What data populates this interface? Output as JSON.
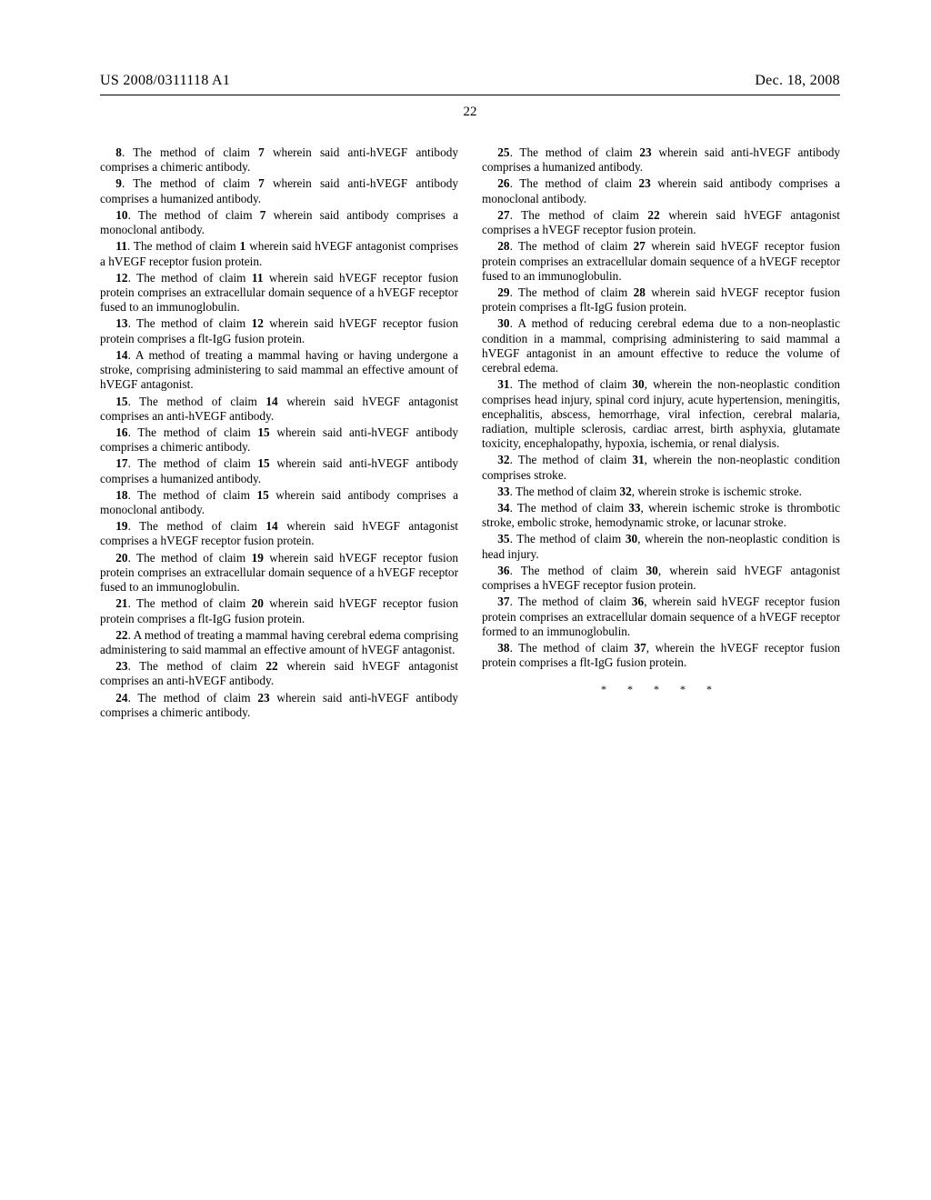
{
  "header": {
    "pub_number": "US 2008/0311118 A1",
    "pub_date": "Dec. 18, 2008",
    "page_label": "22"
  },
  "claims": [
    {
      "n": "8",
      "ref": "7",
      "text_a": ". The method of claim ",
      "text_b": " wherein said anti-hVEGF antibody comprises a chimeric antibody."
    },
    {
      "n": "9",
      "ref": "7",
      "text_a": ". The method of claim ",
      "text_b": " wherein said anti-hVEGF antibody comprises a humanized antibody."
    },
    {
      "n": "10",
      "ref": "7",
      "text_a": ". The method of claim ",
      "text_b": " wherein said antibody comprises a monoclonal antibody."
    },
    {
      "n": "11",
      "ref": "1",
      "text_a": ". The method of claim ",
      "text_b": " wherein said hVEGF antagonist comprises a hVEGF receptor fusion protein."
    },
    {
      "n": "12",
      "ref": "11",
      "text_a": ". The method of claim ",
      "text_b": " wherein said hVEGF receptor fusion protein comprises an extracellular domain sequence of a hVEGF receptor fused to an immunoglobulin."
    },
    {
      "n": "13",
      "ref": "12",
      "text_a": ". The method of claim ",
      "text_b": " wherein said hVEGF receptor fusion protein comprises a flt-IgG fusion protein."
    },
    {
      "n": "14",
      "ref": null,
      "text_a": ". A method of treating a mammal having or having undergone a stroke, comprising administering to said mammal an effective amount of hVEGF antagonist.",
      "text_b": null
    },
    {
      "n": "15",
      "ref": "14",
      "text_a": ". The method of claim ",
      "text_b": " wherein said hVEGF antagonist comprises an anti-hVEGF antibody."
    },
    {
      "n": "16",
      "ref": "15",
      "text_a": ". The method of claim ",
      "text_b": " wherein said anti-hVEGF antibody comprises a chimeric antibody."
    },
    {
      "n": "17",
      "ref": "15",
      "text_a": ". The method of claim ",
      "text_b": " wherein said anti-hVEGF antibody comprises a humanized antibody."
    },
    {
      "n": "18",
      "ref": "15",
      "text_a": ". The method of claim ",
      "text_b": " wherein said antibody comprises a monoclonal antibody."
    },
    {
      "n": "19",
      "ref": "14",
      "text_a": ". The method of claim ",
      "text_b": " wherein said hVEGF antagonist comprises a hVEGF receptor fusion protein."
    },
    {
      "n": "20",
      "ref": "19",
      "text_a": ". The method of claim ",
      "text_b": " wherein said hVEGF receptor fusion protein comprises an extracellular domain sequence of a hVEGF receptor fused to an immunoglobulin."
    },
    {
      "n": "21",
      "ref": "20",
      "text_a": ". The method of claim ",
      "text_b": " wherein said hVEGF receptor fusion protein comprises a flt-IgG fusion protein."
    },
    {
      "n": "22",
      "ref": null,
      "text_a": ". A method of treating a mammal having cerebral edema comprising administering to said mammal an effective amount of hVEGF antagonist.",
      "text_b": null
    },
    {
      "n": "23",
      "ref": "22",
      "text_a": ". The method of claim ",
      "text_b": " wherein said hVEGF antagonist comprises an anti-hVEGF antibody."
    },
    {
      "n": "24",
      "ref": "23",
      "text_a": ". The method of claim ",
      "text_b": " wherein said anti-hVEGF antibody comprises a chimeric antibody."
    },
    {
      "n": "25",
      "ref": "23",
      "text_a": ". The method of claim ",
      "text_b": " wherein said anti-hVEGF antibody comprises a humanized antibody."
    },
    {
      "n": "26",
      "ref": "23",
      "text_a": ". The method of claim ",
      "text_b": " wherein said antibody comprises a monoclonal antibody."
    },
    {
      "n": "27",
      "ref": "22",
      "text_a": ". The method of claim ",
      "text_b": " wherein said hVEGF antagonist comprises a hVEGF receptor fusion protein."
    },
    {
      "n": "28",
      "ref": "27",
      "text_a": ". The method of claim ",
      "text_b": " wherein said hVEGF receptor fusion protein comprises an extracellular domain sequence of a hVEGF receptor fused to an immunoglobulin."
    },
    {
      "n": "29",
      "ref": "28",
      "text_a": ". The method of claim ",
      "text_b": " wherein said hVEGF receptor fusion protein comprises a flt-IgG fusion protein."
    },
    {
      "n": "30",
      "ref": null,
      "text_a": ". A method of reducing cerebral edema due to a non-neoplastic condition in a mammal, comprising administering to said mammal a hVEGF antagonist in an amount effective to reduce the volume of cerebral edema.",
      "text_b": null
    },
    {
      "n": "31",
      "ref": "30",
      "text_a": ". The method of claim ",
      "text_b": ", wherein the non-neoplastic condition comprises head injury, spinal cord injury, acute hypertension, meningitis, encephalitis, abscess, hemorrhage, viral infection, cerebral malaria, radiation, multiple sclerosis, cardiac arrest, birth asphyxia, glutamate toxicity, encephalopathy, hypoxia, ischemia, or renal dialysis."
    },
    {
      "n": "32",
      "ref": "31",
      "text_a": ". The method of claim ",
      "text_b": ", wherein the non-neoplastic condition comprises stroke."
    },
    {
      "n": "33",
      "ref": "32",
      "text_a": ". The method of claim ",
      "text_b": ", wherein stroke is ischemic stroke."
    },
    {
      "n": "34",
      "ref": "33",
      "text_a": ". The method of claim ",
      "text_b": ", wherein ischemic stroke is thrombotic stroke, embolic stroke, hemodynamic stroke, or lacunar stroke."
    },
    {
      "n": "35",
      "ref": "30",
      "text_a": ". The method of claim ",
      "text_b": ", wherein the non-neoplastic condition is head injury."
    },
    {
      "n": "36",
      "ref": "30",
      "text_a": ". The method of claim ",
      "text_b": ", wherein said hVEGF antagonist comprises a hVEGF receptor fusion protein."
    },
    {
      "n": "37",
      "ref": "36",
      "text_a": ". The method of claim ",
      "text_b": ", wherein said hVEGF receptor fusion protein comprises an extracellular domain sequence of a hVEGF receptor formed to an immunoglobulin."
    },
    {
      "n": "38",
      "ref": "37",
      "text_a": ". The method of claim ",
      "text_b": ", wherein the hVEGF receptor fusion protein comprises a flt-IgG fusion protein."
    }
  ],
  "endmark": "*    *    *    *    *"
}
